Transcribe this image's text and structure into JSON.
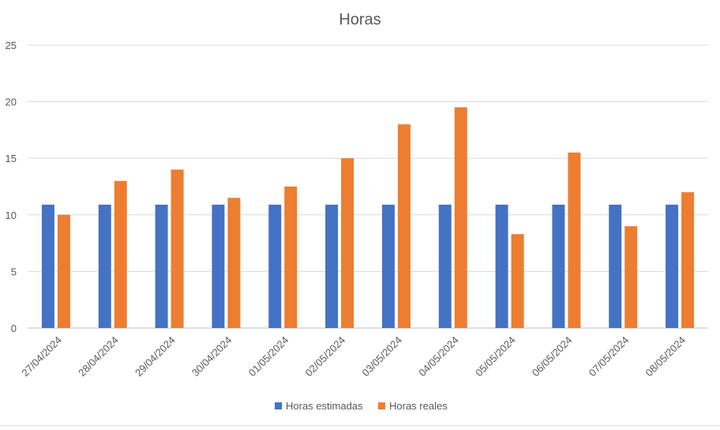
{
  "chart_data": {
    "type": "bar",
    "title": "Horas",
    "xlabel": "",
    "ylabel": "",
    "categories": [
      "27/04/2024",
      "28/04/2024",
      "29/04/2024",
      "30/04/2024",
      "01/05/2024",
      "02/05/2024",
      "03/05/2024",
      "04/05/2024",
      "05/05/2024",
      "06/05/2024",
      "07/05/2024",
      "08/05/2024"
    ],
    "series": [
      {
        "name": "Horas estimadas",
        "color": "#4472c4",
        "values": [
          10.9,
          10.9,
          10.9,
          10.9,
          10.9,
          10.9,
          10.9,
          10.9,
          10.9,
          10.9,
          10.9,
          10.9
        ]
      },
      {
        "name": "Horas reales",
        "color": "#ed7d31",
        "values": [
          10,
          13,
          14,
          11.5,
          12.5,
          15,
          18,
          19.5,
          8.3,
          15.5,
          9,
          12
        ]
      }
    ],
    "ylim": [
      0,
      25
    ],
    "yticks": [
      0,
      5,
      10,
      15,
      20,
      25
    ],
    "grid": true,
    "legend_position": "bottom"
  }
}
